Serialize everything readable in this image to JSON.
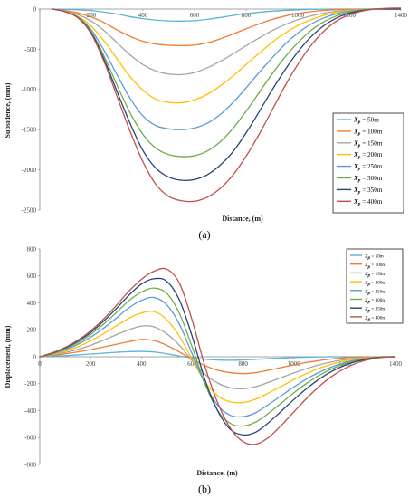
{
  "chart_data": [
    {
      "type": "line",
      "panel_label": "(a)",
      "xlabel": "Distance, (m)",
      "ylabel": "Subsidence, (mm)",
      "xlim": [
        0,
        1400
      ],
      "ylim": [
        -2500,
        0
      ],
      "x_ticks": [
        0,
        200,
        400,
        600,
        800,
        1000,
        1200,
        1400
      ],
      "y_ticks": [
        0,
        -500,
        -1000,
        -1500,
        -2000,
        -2500
      ],
      "x_tick_labels": [
        "200",
        "400",
        "600",
        "800",
        "1000",
        "1200",
        "1400"
      ],
      "y_tick_labels": [
        "0",
        "-500",
        "-1000",
        "-1500",
        "-2000",
        "-2500"
      ],
      "grid": false,
      "legend_position": "right-bottom",
      "legend_symbol": "X",
      "legend_sub": "p",
      "x": [
        50,
        100,
        150,
        200,
        250,
        300,
        350,
        400,
        450,
        500,
        550,
        600,
        650,
        700,
        750,
        800,
        850,
        900,
        950,
        1000,
        1050,
        1100,
        1150,
        1200,
        1250,
        1300,
        1350,
        1400
      ],
      "series": [
        {
          "name": " =  50m",
          "color": "#5ab4d6",
          "values": [
            0,
            -4,
            -10,
            -20,
            -38,
            -62,
            -95,
            -120,
            -138,
            -148,
            -150,
            -145,
            -128,
            -105,
            -80,
            -58,
            -40,
            -26,
            -16,
            -9,
            -4,
            -1,
            0,
            0,
            0,
            0,
            0,
            0
          ]
        },
        {
          "name": " = 100m",
          "color": "#ed7d31",
          "values": [
            0,
            -20,
            -50,
            -100,
            -170,
            -260,
            -340,
            -400,
            -435,
            -450,
            -455,
            -448,
            -420,
            -370,
            -310,
            -245,
            -185,
            -130,
            -88,
            -55,
            -32,
            -17,
            -8,
            -3,
            0,
            0,
            0,
            0
          ]
        },
        {
          "name": " = 150m",
          "color": "#a5a5a5",
          "values": [
            0,
            -25,
            -70,
            -150,
            -270,
            -420,
            -570,
            -690,
            -770,
            -808,
            -815,
            -790,
            -730,
            -650,
            -555,
            -455,
            -360,
            -270,
            -195,
            -133,
            -87,
            -52,
            -28,
            -13,
            -5,
            0,
            0,
            0
          ]
        },
        {
          "name": " = 200m",
          "color": "#ffc000",
          "values": [
            0,
            -30,
            -95,
            -215,
            -400,
            -620,
            -840,
            -1010,
            -1120,
            -1160,
            -1165,
            -1130,
            -1060,
            -955,
            -830,
            -690,
            -550,
            -415,
            -300,
            -205,
            -135,
            -80,
            -43,
            -20,
            -7,
            0,
            0,
            0
          ]
        },
        {
          "name": " = 250m",
          "color": "#5b9bd5",
          "values": [
            0,
            -32,
            -105,
            -260,
            -520,
            -820,
            -1110,
            -1330,
            -1450,
            -1490,
            -1500,
            -1480,
            -1420,
            -1310,
            -1160,
            -980,
            -790,
            -610,
            -440,
            -300,
            -190,
            -112,
            -60,
            -28,
            -10,
            0,
            0,
            0
          ]
        },
        {
          "name": " = 300m",
          "color": "#70ad47",
          "values": [
            0,
            -33,
            -110,
            -285,
            -590,
            -950,
            -1290,
            -1560,
            -1730,
            -1810,
            -1835,
            -1825,
            -1765,
            -1650,
            -1480,
            -1270,
            -1040,
            -810,
            -600,
            -420,
            -270,
            -160,
            -85,
            -40,
            -14,
            0,
            0,
            0
          ]
        },
        {
          "name": " = 350m",
          "color": "#264478",
          "values": [
            0,
            -34,
            -112,
            -300,
            -630,
            -1030,
            -1420,
            -1760,
            -1980,
            -2090,
            -2130,
            -2120,
            -2060,
            -1940,
            -1770,
            -1540,
            -1280,
            -1010,
            -760,
            -535,
            -350,
            -210,
            -112,
            -52,
            -18,
            0,
            0,
            0
          ]
        },
        {
          "name": " = 400m",
          "color": "#c0504d",
          "values": [
            0,
            -35,
            -115,
            -310,
            -660,
            -1090,
            -1520,
            -1900,
            -2180,
            -2330,
            -2385,
            -2390,
            -2340,
            -2230,
            -2060,
            -1830,
            -1560,
            -1260,
            -960,
            -690,
            -460,
            -280,
            -150,
            -70,
            -25,
            0,
            10,
            12
          ]
        }
      ]
    },
    {
      "type": "line",
      "panel_label": "(b)",
      "xlabel": "Distance, (m)",
      "ylabel": "Displacement, (mm)",
      "xlim": [
        0,
        1400
      ],
      "ylim": [
        -800,
        800
      ],
      "x_ticks": [
        0,
        200,
        400,
        600,
        800,
        1000,
        1200,
        1400
      ],
      "y_ticks": [
        800,
        600,
        400,
        200,
        0,
        -200,
        -400,
        -600,
        -800
      ],
      "x_tick_labels": [
        "0",
        "200",
        "400",
        "600",
        "800",
        "1000",
        "1200",
        "1400"
      ],
      "y_tick_labels": [
        "800",
        "600",
        "400",
        "200",
        "0",
        "-200",
        "-400",
        "-600",
        "-800"
      ],
      "grid": false,
      "legend_position": "top-right",
      "legend_symbol": "X",
      "legend_sub": "p",
      "x": [
        0,
        50,
        100,
        150,
        200,
        250,
        300,
        350,
        400,
        450,
        500,
        550,
        600,
        650,
        700,
        750,
        800,
        850,
        900,
        950,
        1000,
        1050,
        1100,
        1150,
        1200,
        1250,
        1300,
        1350,
        1400
      ],
      "series": [
        {
          "name": " =  50m",
          "color": "#5ab4d6",
          "values": [
            0,
            4,
            8,
            14,
            20,
            27,
            33,
            38,
            40,
            35,
            22,
            5,
            -8,
            -18,
            -24,
            -26,
            -24,
            -19,
            -14,
            -10,
            -6,
            -3,
            -1,
            0,
            0,
            0,
            0,
            0,
            0
          ]
        },
        {
          "name": " = 100m",
          "color": "#ed7d31",
          "values": [
            0,
            10,
            22,
            36,
            52,
            72,
            92,
            112,
            128,
            120,
            85,
            35,
            -20,
            -65,
            -100,
            -118,
            -125,
            -118,
            -100,
            -80,
            -60,
            -43,
            -28,
            -16,
            -8,
            -3,
            -1,
            0,
            0
          ]
        },
        {
          "name": " = 150m",
          "color": "#a5a5a5",
          "values": [
            0,
            14,
            32,
            55,
            85,
            122,
            162,
            200,
            228,
            222,
            170,
            85,
            -30,
            -130,
            -195,
            -230,
            -238,
            -222,
            -190,
            -155,
            -120,
            -88,
            -60,
            -38,
            -22,
            -11,
            -4,
            -1,
            0
          ]
        },
        {
          "name": " = 200m",
          "color": "#ffc000",
          "values": [
            0,
            18,
            42,
            75,
            118,
            170,
            228,
            285,
            325,
            335,
            275,
            150,
            -20,
            -185,
            -290,
            -335,
            -340,
            -315,
            -270,
            -220,
            -170,
            -125,
            -86,
            -55,
            -32,
            -16,
            -6,
            -1,
            0
          ]
        },
        {
          "name": " = 250m",
          "color": "#5b9bd5",
          "values": [
            0,
            22,
            52,
            92,
            145,
            210,
            285,
            362,
            418,
            440,
            385,
            240,
            20,
            -200,
            -360,
            -435,
            -445,
            -415,
            -355,
            -290,
            -225,
            -165,
            -115,
            -75,
            -44,
            -22,
            -9,
            -2,
            0
          ]
        },
        {
          "name": " = 300m",
          "color": "#70ad47",
          "values": [
            0,
            25,
            60,
            105,
            165,
            240,
            325,
            415,
            480,
            510,
            470,
            320,
            70,
            -200,
            -400,
            -495,
            -515,
            -485,
            -420,
            -345,
            -268,
            -198,
            -138,
            -90,
            -53,
            -27,
            -11,
            -3,
            0
          ]
        },
        {
          "name": " = 350m",
          "color": "#264478",
          "values": [
            0,
            28,
            66,
            116,
            180,
            262,
            355,
            455,
            540,
            580,
            560,
            420,
            150,
            -170,
            -400,
            -540,
            -580,
            -560,
            -490,
            -405,
            -318,
            -237,
            -166,
            -108,
            -64,
            -33,
            -13,
            -3,
            0
          ]
        },
        {
          "name": " = 400m",
          "color": "#c0504d",
          "values": [
            0,
            30,
            70,
            123,
            192,
            278,
            378,
            485,
            575,
            635,
            650,
            545,
            270,
            -70,
            -340,
            -530,
            -630,
            -650,
            -600,
            -510,
            -410,
            -310,
            -220,
            -145,
            -87,
            -45,
            -18,
            -4,
            0
          ]
        }
      ]
    }
  ]
}
